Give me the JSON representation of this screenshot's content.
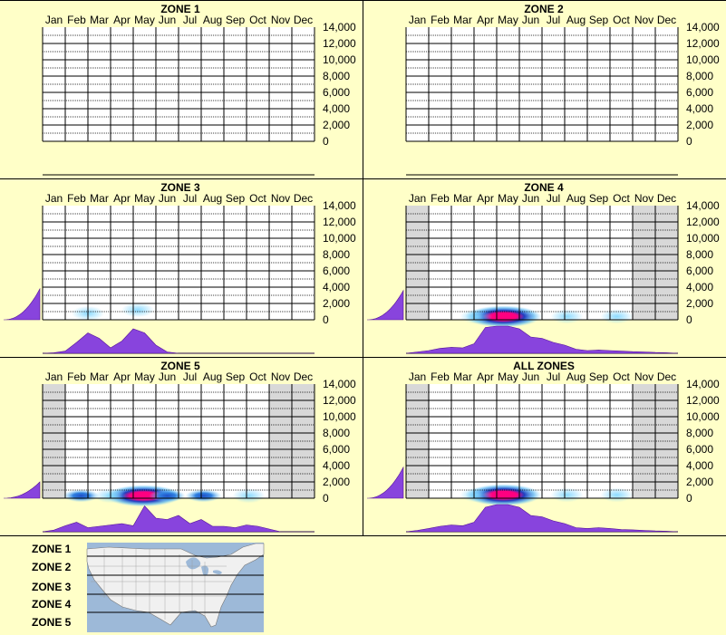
{
  "panels": [
    {
      "title": "ZONE 1"
    },
    {
      "title": "ZONE 2"
    },
    {
      "title": "ZONE 3"
    },
    {
      "title": "ZONE 4"
    },
    {
      "title": "ZONE 5"
    },
    {
      "title": "ALL ZONES"
    }
  ],
  "legend": {
    "labels": [
      "ZONE 1",
      "ZONE 2",
      "ZONE 3",
      "ZONE 4",
      "ZONE 5"
    ]
  },
  "colors": {
    "background": "#ffffc8",
    "profile_fill": "#8844dd",
    "profile_stroke": "#551199",
    "heat_low": "#7fd6ff",
    "heat_mid": "#1f4fc8",
    "heat_high": "#ff0080",
    "inactive_month": "#d8d8d8",
    "map_water": "#9db9d8",
    "map_land": "#f0f0f0"
  },
  "chart_data": [
    {
      "type": "heatmap",
      "title": "ZONE 1",
      "months": [
        "Jan",
        "Feb",
        "Mar",
        "Apr",
        "May",
        "Jun",
        "Jul",
        "Aug",
        "Sep",
        "Oct",
        "Nov",
        "Dec"
      ],
      "y_ticks": [
        "14,000",
        "12,000",
        "10,000",
        "8,000",
        "6,000",
        "4,000",
        "2,000",
        "0"
      ],
      "ylim": [
        0,
        14000
      ],
      "seasonal_profile": [],
      "elevation_profile": [],
      "inactive_months": [],
      "blobs": []
    },
    {
      "type": "heatmap",
      "title": "ZONE 2",
      "months": [
        "Jan",
        "Feb",
        "Mar",
        "Apr",
        "May",
        "Jun",
        "Jul",
        "Aug",
        "Sep",
        "Oct",
        "Nov",
        "Dec"
      ],
      "y_ticks": [
        "14,000",
        "12,000",
        "10,000",
        "8,000",
        "6,000",
        "4,000",
        "2,000",
        "0"
      ],
      "ylim": [
        0,
        14000
      ],
      "seasonal_profile": [],
      "elevation_profile": [],
      "inactive_months": [],
      "blobs": []
    },
    {
      "type": "heatmap",
      "title": "ZONE 3",
      "months": [
        "Jan",
        "Feb",
        "Mar",
        "Apr",
        "May",
        "Jun",
        "Jul",
        "Aug",
        "Sep",
        "Oct",
        "Nov",
        "Dec"
      ],
      "y_ticks": [
        "14,000",
        "12,000",
        "10,000",
        "8,000",
        "6,000",
        "4,000",
        "2,000",
        "0"
      ],
      "ylim": [
        0,
        14000
      ],
      "seasonal_profile": [
        0,
        0.02,
        0.08,
        0.4,
        0.75,
        0.55,
        0.2,
        0.45,
        0.9,
        0.75,
        0.3,
        0.05,
        0,
        0,
        0,
        0,
        0,
        0,
        0,
        0,
        0,
        0,
        0,
        0,
        0
      ],
      "elevation_profile": [
        0.95,
        0.5,
        0.15,
        0.04,
        0,
        0,
        0,
        0
      ],
      "inactive_months": [],
      "blobs": [
        {
          "month": 1.5,
          "elev": 800,
          "intensity": 0.3
        },
        {
          "month": 3.7,
          "elev": 1200,
          "intensity": 0.3
        }
      ]
    },
    {
      "type": "heatmap",
      "title": "ZONE 4",
      "months": [
        "Jan",
        "Feb",
        "Mar",
        "Apr",
        "May",
        "Jun",
        "Jul",
        "Aug",
        "Sep",
        "Oct",
        "Nov",
        "Dec"
      ],
      "y_ticks": [
        "14,000",
        "12,000",
        "10,000",
        "8,000",
        "6,000",
        "4,000",
        "2,000",
        "0"
      ],
      "ylim": [
        0,
        14000
      ],
      "seasonal_profile": [
        0,
        0.05,
        0.1,
        0.18,
        0.22,
        0.2,
        0.35,
        0.95,
        1,
        1,
        0.9,
        0.6,
        0.55,
        0.4,
        0.3,
        0.15,
        0.1,
        0.12,
        0.1,
        0.08,
        0.06,
        0.05,
        0.03,
        0.02,
        0
      ],
      "elevation_profile": [
        0.9,
        0.3,
        0.05,
        0,
        0,
        0,
        0,
        0
      ],
      "inactive_months": [
        0,
        10,
        11
      ],
      "blobs": [
        {
          "month": 3.8,
          "elev": 400,
          "intensity": 1.0
        },
        {
          "month": 2.6,
          "elev": 400,
          "intensity": 0.3
        },
        {
          "month": 6.6,
          "elev": 400,
          "intensity": 0.3
        },
        {
          "month": 8.8,
          "elev": 400,
          "intensity": 0.2
        }
      ]
    },
    {
      "type": "heatmap",
      "title": "ZONE 5",
      "months": [
        "Jan",
        "Feb",
        "Mar",
        "Apr",
        "May",
        "Jun",
        "Jul",
        "Aug",
        "Sep",
        "Oct",
        "Nov",
        "Dec"
      ],
      "y_ticks": [
        "14,000",
        "12,000",
        "10,000",
        "8,000",
        "6,000",
        "4,000",
        "2,000",
        "0"
      ],
      "ylim": [
        0,
        14000
      ],
      "seasonal_profile": [
        0,
        0.06,
        0.22,
        0.35,
        0.15,
        0.2,
        0.25,
        0.3,
        0.22,
        0.95,
        0.5,
        0.45,
        0.6,
        0.3,
        0.45,
        0.2,
        0.2,
        0.15,
        0.25,
        0.2,
        0.1,
        0,
        0,
        0,
        0
      ],
      "elevation_profile": [
        0.5,
        0.1,
        0,
        0,
        0,
        0,
        0,
        0
      ],
      "inactive_months": [
        0,
        10,
        11
      ],
      "blobs": [
        {
          "month": 3.95,
          "elev": 300,
          "intensity": 1.0
        },
        {
          "month": 1.2,
          "elev": 300,
          "intensity": 0.4
        },
        {
          "month": 2.5,
          "elev": 300,
          "intensity": 0.3
        },
        {
          "month": 5.0,
          "elev": 300,
          "intensity": 0.45
        },
        {
          "month": 6.6,
          "elev": 300,
          "intensity": 0.45
        },
        {
          "month": 8.6,
          "elev": 300,
          "intensity": 0.3
        }
      ]
    },
    {
      "type": "heatmap",
      "title": "ALL ZONES",
      "months": [
        "Jan",
        "Feb",
        "Mar",
        "Apr",
        "May",
        "Jun",
        "Jul",
        "Aug",
        "Sep",
        "Oct",
        "Nov",
        "Dec"
      ],
      "y_ticks": [
        "14,000",
        "12,000",
        "10,000",
        "8,000",
        "6,000",
        "4,000",
        "2,000",
        "0"
      ],
      "ylim": [
        0,
        14000
      ],
      "seasonal_profile": [
        0,
        0.05,
        0.12,
        0.2,
        0.25,
        0.22,
        0.35,
        0.9,
        1,
        1,
        0.9,
        0.6,
        0.55,
        0.4,
        0.3,
        0.15,
        0.12,
        0.15,
        0.12,
        0.08,
        0.07,
        0.05,
        0.03,
        0.02,
        0
      ],
      "elevation_profile": [
        0.95,
        0.35,
        0.06,
        0,
        0,
        0,
        0,
        0
      ],
      "inactive_months": [
        0,
        10,
        11
      ],
      "blobs": [
        {
          "month": 3.8,
          "elev": 400,
          "intensity": 1.0
        },
        {
          "month": 2.6,
          "elev": 400,
          "intensity": 0.3
        },
        {
          "month": 6.6,
          "elev": 400,
          "intensity": 0.3
        },
        {
          "month": 8.8,
          "elev": 400,
          "intensity": 0.2
        }
      ]
    }
  ]
}
